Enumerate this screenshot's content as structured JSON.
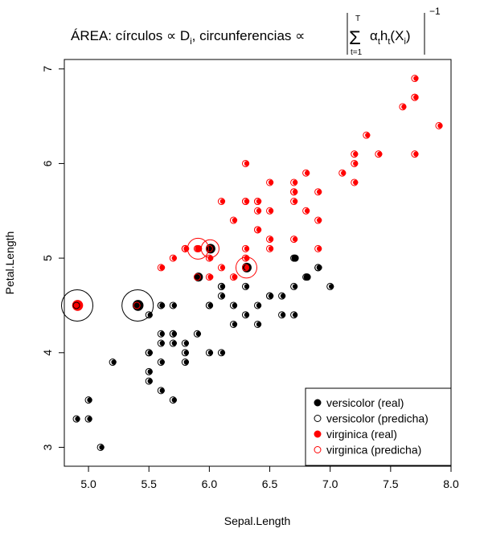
{
  "chart_data": {
    "type": "scatter",
    "title": {
      "prefix": "ÁREA: círculos ∝ D",
      "prefix_sub": "i",
      "middle": ",  circunferencias ∝",
      "sum_upper": "T",
      "sum_lower": "t=1",
      "alpha": "α",
      "alpha_sub": "t",
      "h": "h",
      "h_sub": "t",
      "x": "X",
      "x_sub": "i",
      "exponent": "−1"
    },
    "xlabel": "Sepal.Length",
    "ylabel": "Petal.Length",
    "xlim": [
      4.8,
      8.0
    ],
    "ylim": [
      2.8,
      7.1
    ],
    "xticks": [
      "5.0",
      "5.5",
      "6.0",
      "6.5",
      "7.0",
      "7.5",
      "8.0"
    ],
    "yticks": [
      "3",
      "4",
      "5",
      "6",
      "7"
    ],
    "colors": {
      "versicolor": "#000000",
      "virginica": "#ff0000"
    },
    "legend": {
      "position": "bottom-right",
      "entries": [
        {
          "label": "versicolor (real)",
          "color": "#000000",
          "marker": "filled-circle"
        },
        {
          "label": "versicolor (predicha)",
          "color": "#000000",
          "marker": "open-circle"
        },
        {
          "label": "virginica (real)",
          "color": "#ff0000",
          "marker": "filled-circle"
        },
        {
          "label": "virginica (predicha)",
          "color": "#ff0000",
          "marker": "open-circle"
        }
      ]
    },
    "series": [
      {
        "name": "versicolor (real)",
        "note_columns": [
          "x",
          "y",
          "weight",
          "predicted"
        ],
        "points": [
          [
            7.0,
            4.7,
            1,
            "versicolor"
          ],
          [
            6.4,
            4.5,
            1,
            "versicolor"
          ],
          [
            6.9,
            4.9,
            1.2,
            "versicolor"
          ],
          [
            5.5,
            4.0,
            1,
            "versicolor"
          ],
          [
            6.5,
            4.6,
            1,
            "versicolor"
          ],
          [
            5.7,
            4.5,
            1,
            "versicolor"
          ],
          [
            6.3,
            4.7,
            1,
            "versicolor"
          ],
          [
            4.9,
            3.3,
            1,
            "versicolor"
          ],
          [
            6.6,
            4.6,
            1,
            "versicolor"
          ],
          [
            5.2,
            3.9,
            1,
            "versicolor"
          ],
          [
            5.0,
            3.5,
            1,
            "versicolor"
          ],
          [
            5.9,
            4.2,
            1,
            "versicolor"
          ],
          [
            6.0,
            4.0,
            1,
            "versicolor"
          ],
          [
            6.1,
            4.7,
            1,
            "versicolor"
          ],
          [
            5.6,
            3.6,
            1,
            "versicolor"
          ],
          [
            6.7,
            4.4,
            1,
            "versicolor"
          ],
          [
            5.6,
            4.5,
            1.2,
            "versicolor"
          ],
          [
            5.8,
            4.1,
            1,
            "versicolor"
          ],
          [
            6.2,
            4.5,
            1,
            "versicolor"
          ],
          [
            5.6,
            3.9,
            1,
            "versicolor"
          ],
          [
            5.9,
            4.8,
            3.0,
            "virginica"
          ],
          [
            6.1,
            4.0,
            1,
            "versicolor"
          ],
          [
            6.3,
            4.9,
            3.5,
            "virginica"
          ],
          [
            6.1,
            4.7,
            1,
            "versicolor"
          ],
          [
            6.4,
            4.3,
            1,
            "versicolor"
          ],
          [
            6.6,
            4.4,
            1,
            "versicolor"
          ],
          [
            6.8,
            4.8,
            2.0,
            "versicolor"
          ],
          [
            6.7,
            5.0,
            2.0,
            "versicolor"
          ],
          [
            6.0,
            4.5,
            1,
            "versicolor"
          ],
          [
            5.7,
            3.5,
            1,
            "versicolor"
          ],
          [
            5.5,
            3.8,
            1,
            "versicolor"
          ],
          [
            5.5,
            3.7,
            1,
            "versicolor"
          ],
          [
            5.8,
            3.9,
            1,
            "versicolor"
          ],
          [
            6.0,
            5.1,
            3.5,
            "virginica"
          ],
          [
            5.4,
            4.5,
            4.5,
            "virginica"
          ],
          [
            6.0,
            4.5,
            1,
            "versicolor"
          ],
          [
            6.7,
            4.7,
            1,
            "versicolor"
          ],
          [
            6.3,
            4.4,
            1,
            "versicolor"
          ],
          [
            5.6,
            4.1,
            1,
            "versicolor"
          ],
          [
            5.5,
            4.0,
            1,
            "versicolor"
          ],
          [
            5.5,
            4.4,
            1,
            "versicolor"
          ],
          [
            6.1,
            4.6,
            1,
            "versicolor"
          ],
          [
            5.8,
            4.0,
            1,
            "versicolor"
          ],
          [
            5.0,
            3.3,
            1,
            "versicolor"
          ],
          [
            5.6,
            4.2,
            1,
            "versicolor"
          ],
          [
            5.7,
            4.2,
            1,
            "versicolor"
          ],
          [
            5.7,
            4.2,
            1,
            "versicolor"
          ],
          [
            6.2,
            4.3,
            1,
            "versicolor"
          ],
          [
            5.1,
            3.0,
            1,
            "versicolor"
          ],
          [
            5.7,
            4.1,
            1,
            "versicolor"
          ],
          [
            6.5,
            4.6,
            1,
            "versicolor"
          ],
          [
            6.9,
            4.9,
            1,
            "versicolor"
          ],
          [
            5.6,
            4.5,
            1,
            "versicolor"
          ]
        ]
      },
      {
        "name": "virginica (real)",
        "note_columns": [
          "x",
          "y",
          "weight",
          "predicted"
        ],
        "points": [
          [
            6.3,
            6.0,
            1,
            "virginica"
          ],
          [
            5.8,
            5.1,
            1.2,
            "virginica"
          ],
          [
            7.1,
            5.9,
            1,
            "virginica"
          ],
          [
            6.3,
            5.6,
            1,
            "virginica"
          ],
          [
            6.5,
            5.8,
            1,
            "virginica"
          ],
          [
            7.6,
            6.6,
            1,
            "virginica"
          ],
          [
            4.9,
            4.5,
            4.5,
            "versicolor"
          ],
          [
            7.3,
            6.3,
            1,
            "virginica"
          ],
          [
            6.7,
            5.8,
            1,
            "virginica"
          ],
          [
            7.2,
            6.1,
            1,
            "virginica"
          ],
          [
            6.5,
            5.1,
            1,
            "virginica"
          ],
          [
            6.4,
            5.3,
            1,
            "virginica"
          ],
          [
            6.8,
            5.5,
            1,
            "virginica"
          ],
          [
            5.7,
            5.0,
            1,
            "virginica"
          ],
          [
            5.8,
            5.1,
            1,
            "virginica"
          ],
          [
            6.4,
            5.3,
            1,
            "virginica"
          ],
          [
            6.5,
            5.5,
            1,
            "virginica"
          ],
          [
            7.7,
            6.7,
            1,
            "virginica"
          ],
          [
            7.7,
            6.9,
            1,
            "virginica"
          ],
          [
            6.0,
            5.0,
            1.2,
            "virginica"
          ],
          [
            6.9,
            5.7,
            1,
            "virginica"
          ],
          [
            5.6,
            4.9,
            1.2,
            "virginica"
          ],
          [
            7.7,
            6.7,
            1,
            "virginica"
          ],
          [
            6.3,
            4.9,
            1,
            "virginica"
          ],
          [
            6.7,
            5.7,
            1,
            "virginica"
          ],
          [
            7.2,
            6.0,
            1,
            "virginica"
          ],
          [
            6.2,
            4.8,
            1.2,
            "virginica"
          ],
          [
            6.1,
            4.9,
            1,
            "virginica"
          ],
          [
            6.4,
            5.6,
            1,
            "virginica"
          ],
          [
            7.2,
            5.8,
            1,
            "virginica"
          ],
          [
            7.4,
            6.1,
            1,
            "virginica"
          ],
          [
            7.9,
            6.4,
            1,
            "virginica"
          ],
          [
            6.4,
            5.6,
            1,
            "virginica"
          ],
          [
            6.3,
            5.1,
            1,
            "virginica"
          ],
          [
            6.1,
            5.6,
            1,
            "virginica"
          ],
          [
            7.7,
            6.1,
            1,
            "virginica"
          ],
          [
            6.3,
            5.6,
            1,
            "virginica"
          ],
          [
            6.4,
            5.5,
            1,
            "virginica"
          ],
          [
            6.0,
            4.8,
            1.2,
            "virginica"
          ],
          [
            6.9,
            5.4,
            1,
            "virginica"
          ],
          [
            6.7,
            5.6,
            1,
            "virginica"
          ],
          [
            6.9,
            5.1,
            1,
            "virginica"
          ],
          [
            5.8,
            5.1,
            1,
            "virginica"
          ],
          [
            6.8,
            5.9,
            1,
            "virginica"
          ],
          [
            6.7,
            5.7,
            1,
            "virginica"
          ],
          [
            6.7,
            5.2,
            1,
            "virginica"
          ],
          [
            6.3,
            5.0,
            1.2,
            "virginica"
          ],
          [
            6.5,
            5.2,
            1,
            "virginica"
          ],
          [
            6.2,
            5.4,
            1,
            "virginica"
          ],
          [
            5.9,
            5.1,
            2.0,
            "virginica"
          ]
        ]
      }
    ],
    "predicted_circles": [
      [
        4.9,
        4.5,
        3.0,
        "versicolor"
      ],
      [
        5.4,
        4.5,
        3.0,
        "versicolor"
      ],
      [
        5.9,
        5.1,
        2.0,
        "virginica"
      ],
      [
        6.0,
        5.1,
        1.7,
        "virginica"
      ],
      [
        6.3,
        4.9,
        2.0,
        "virginica"
      ]
    ]
  }
}
